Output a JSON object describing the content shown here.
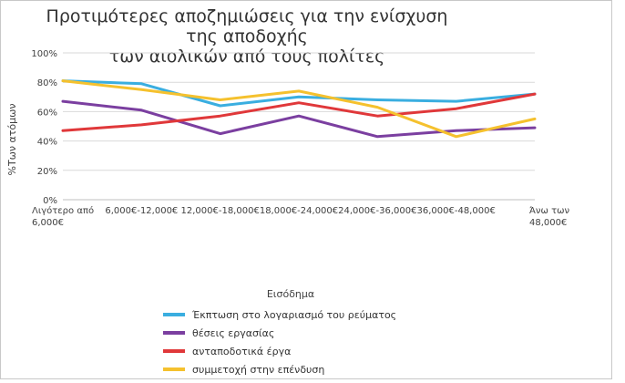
{
  "chart_data": {
    "type": "line",
    "title_lines": [
      "Προτιμότερες αποζημιώσεις για την ενίσχυση της αποδοχής",
      "των αιολικών από τους πολίτες"
    ],
    "xlabel": "Εισόδημα",
    "ylabel": "%Των ατόμων",
    "categories": [
      [
        "Λιγότερο από",
        "6,000€"
      ],
      [
        "6,000€-12,000€"
      ],
      [
        "12,000€-18,000€"
      ],
      [
        "18,000€-24,000€"
      ],
      [
        "24,000€-36,000€"
      ],
      [
        "36,000€-48,000€"
      ],
      [
        "Άνω των",
        "48,000€"
      ]
    ],
    "ylim": [
      0,
      100
    ],
    "yticks": [
      "0%",
      "20%",
      "40%",
      "60%",
      "80%",
      "100%"
    ],
    "ytick_values": [
      0,
      20,
      40,
      60,
      80,
      100
    ],
    "grid": true,
    "legend_position": "bottom",
    "series": [
      {
        "name": "Έκπτωση στο λογαριασμό του ρεύματος",
        "color": "#3aaee0",
        "values": [
          81,
          79,
          64,
          70,
          68,
          67,
          72
        ]
      },
      {
        "name": "θέσεις εργασίας",
        "color": "#7b3fa0",
        "values": [
          67,
          61,
          45,
          57,
          43,
          47,
          49
        ]
      },
      {
        "name": "ανταποδοτικά έργα",
        "color": "#e0383a",
        "values": [
          47,
          51,
          57,
          66,
          57,
          62,
          72
        ]
      },
      {
        "name": "συμμετοχή στην επένδυση",
        "color": "#f5c12e",
        "values": [
          81,
          75,
          68,
          74,
          63,
          43,
          55
        ]
      }
    ]
  }
}
